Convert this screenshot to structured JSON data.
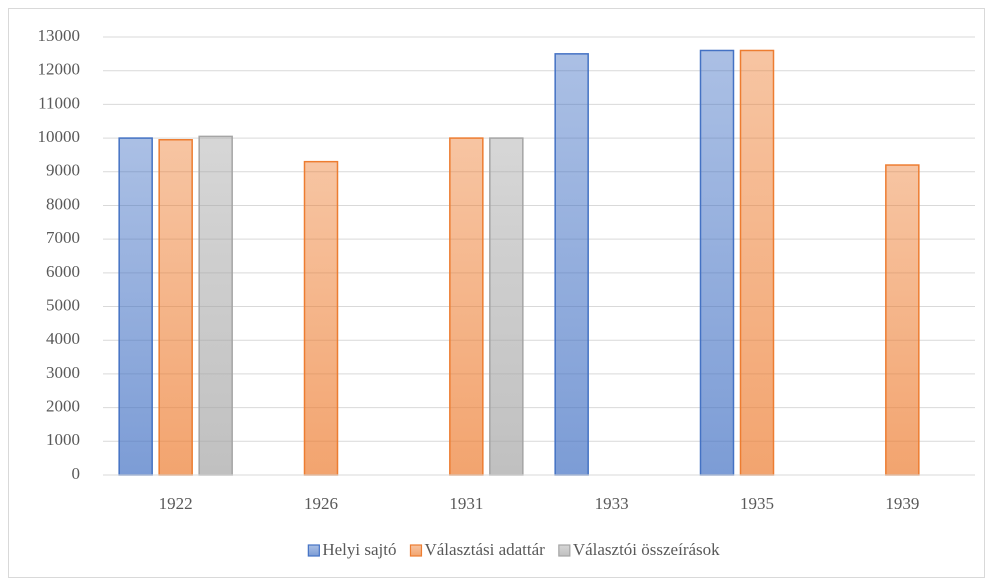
{
  "chart_data": {
    "type": "bar",
    "categories": [
      "1922",
      "1926",
      "1931",
      "1933",
      "1935",
      "1939"
    ],
    "series": [
      {
        "name": "Helyi sajtó",
        "color": "#4472c4",
        "values": [
          10000,
          null,
          null,
          12500,
          12600,
          null
        ]
      },
      {
        "name": "Választási adattár",
        "color": "#ed7d31",
        "values": [
          9950,
          9300,
          10000,
          null,
          12600,
          9200
        ]
      },
      {
        "name": "Választói összeírások",
        "color": "#a5a5a5",
        "values": [
          10050,
          null,
          10000,
          null,
          null,
          null
        ]
      }
    ],
    "ylim": [
      0,
      13000
    ],
    "yticks": [
      0,
      1000,
      2000,
      3000,
      4000,
      5000,
      6000,
      7000,
      8000,
      9000,
      10000,
      11000,
      12000,
      13000
    ],
    "grid": true,
    "legend": "bottom"
  }
}
